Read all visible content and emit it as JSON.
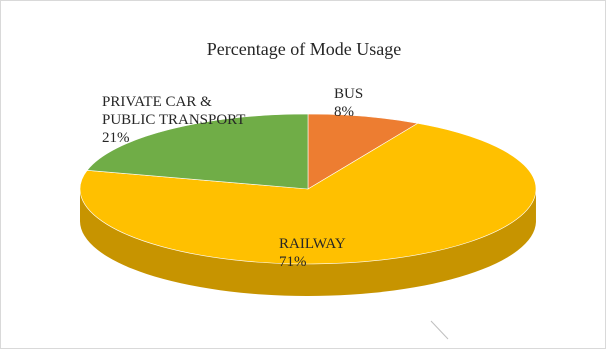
{
  "chart_data": {
    "type": "pie",
    "title": "Percentage of Mode Usage",
    "slices": [
      {
        "label": "BUS",
        "value": 8,
        "value_label": "8%",
        "color": "#ED7D31",
        "dark": "#B8601F"
      },
      {
        "label": "RAILWAY",
        "value": 71,
        "value_label": "71%",
        "color": "#FFC000",
        "dark": "#C79400"
      },
      {
        "label_lines": [
          "PRIVATE CAR &",
          "PUBLIC TRANSPORT"
        ],
        "value": 21,
        "value_label": "21%",
        "color": "#70AD47",
        "dark": "#4E7B30"
      }
    ],
    "style": "3d"
  }
}
